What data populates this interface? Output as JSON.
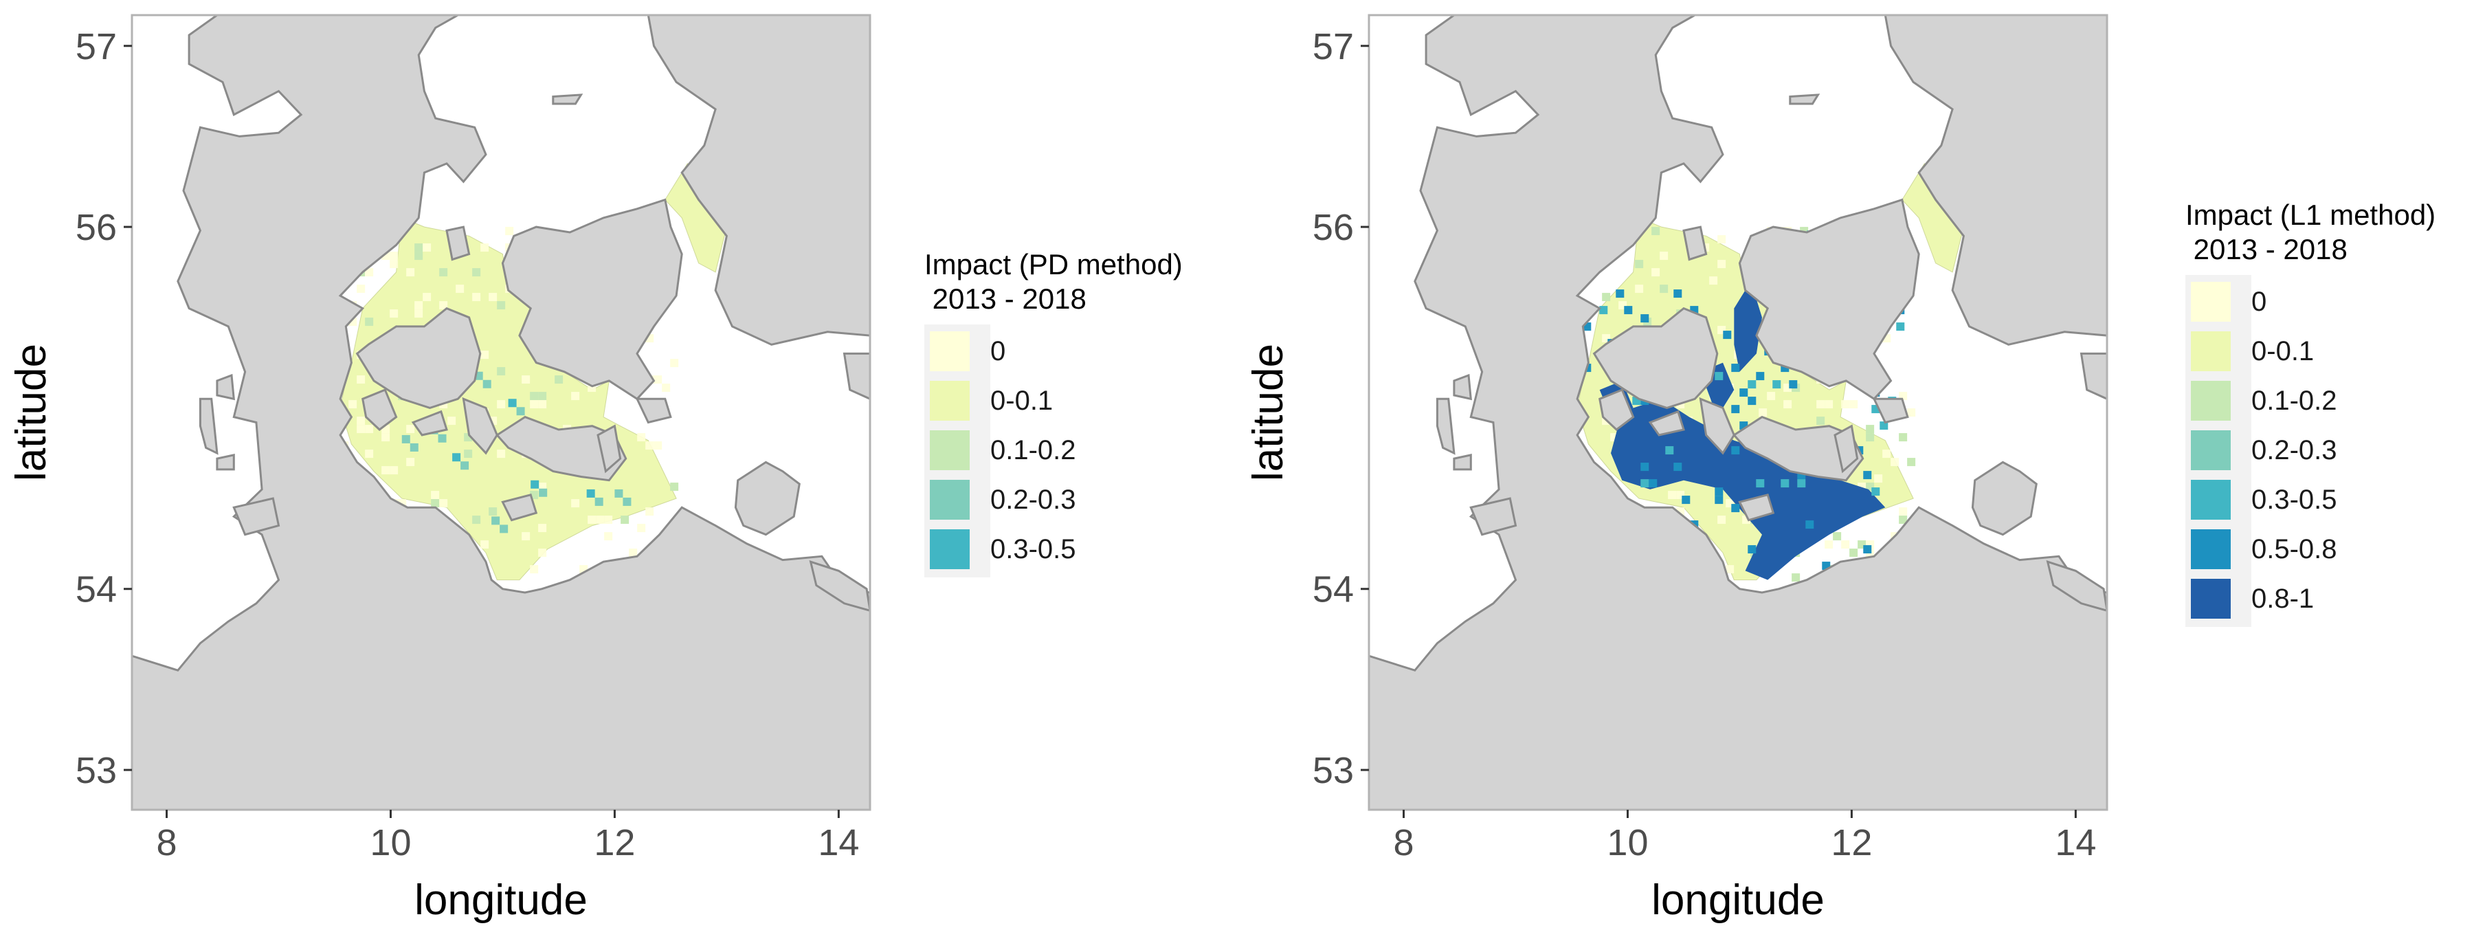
{
  "maps": [
    {
      "id": "left",
      "legend": {
        "title": "Impact (PD method)\n 2013 - 2018",
        "items": [
          {
            "label": "0",
            "color": "#ffffd9"
          },
          {
            "label": "0-0.1",
            "color": "#edf8b1"
          },
          {
            "label": "0.1-0.2",
            "color": "#c7e9b4"
          },
          {
            "label": "0.2-0.3",
            "color": "#7fcdbb"
          },
          {
            "label": "0.3-0.5",
            "color": "#41b6c4"
          }
        ]
      },
      "hotspot_level": "low"
    },
    {
      "id": "right",
      "legend": {
        "title": "Impact (L1 method)\n 2013 - 2018",
        "items": [
          {
            "label": "0",
            "color": "#ffffd9"
          },
          {
            "label": "0-0.1",
            "color": "#edf8b1"
          },
          {
            "label": "0.1-0.2",
            "color": "#c7e9b4"
          },
          {
            "label": "0.2-0.3",
            "color": "#7fcdbb"
          },
          {
            "label": "0.3-0.5",
            "color": "#41b6c4"
          },
          {
            "label": "0.5-0.8",
            "color": "#1d91c0"
          },
          {
            "label": "0.8-1",
            "color": "#225ea8"
          }
        ]
      },
      "hotspot_level": "high"
    }
  ],
  "axes": {
    "x_title": "longitude",
    "y_title": "latitude",
    "x_ticks": [
      "8",
      "10",
      "12",
      "14"
    ],
    "y_ticks": [
      "53",
      "54",
      "56",
      "57"
    ]
  },
  "colors": {
    "land": "#d3d3d3",
    "coast": "#8a8a8a",
    "sea": "#ffffff",
    "zero_impact": "#f5f7c8",
    "low_impact": "#edf8b1",
    "high_impact": "#225ea8",
    "mid_impact": "#1d91c0"
  }
}
